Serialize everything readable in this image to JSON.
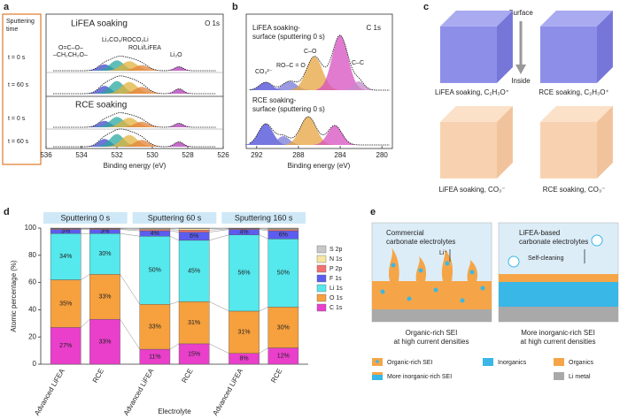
{
  "panels": {
    "a": {
      "letter": "a",
      "sputtering_time": [
        "Sputtering",
        "time"
      ],
      "rows": [
        "t = 0 s",
        "t = 60 s",
        "t = 0 s",
        "t = 60 s"
      ],
      "titles": [
        "LiFEA soaking",
        "RCE soaking"
      ],
      "region": "O 1s",
      "peaks": [
        "–CH₂CH₂O–",
        "O=C–O–",
        "Li₂CO₃/ROCO₂Li",
        "ROLi/LiFEA",
        "Li₂O"
      ],
      "xlabel": "Binding energy (eV)",
      "xlim": [
        536,
        526
      ],
      "xticks": [
        536,
        534,
        532,
        530,
        528,
        526
      ]
    },
    "b": {
      "letter": "b",
      "top": [
        "LiFEA soaking-",
        "surface (sputtering 0 s)"
      ],
      "region": "C 1s",
      "peaks": [
        "CO₃²⁻",
        "RO–C = O",
        "C–O",
        "C–C"
      ],
      "bottom": [
        "RCE soaking-",
        "surface (sputtering 0 s)"
      ],
      "xlabel": "Binding energy (eV)",
      "xlim": [
        293,
        279
      ],
      "xticks": [
        292,
        288,
        284,
        280
      ]
    },
    "c": {
      "letter": "c",
      "surface": "Surface",
      "inside": "Inside",
      "labels": [
        "LiFEA soaking, C₂H₃O⁺",
        "RCE soaking, C₂H₃O⁺",
        "LiFEA soaking, CO₃⁻",
        "RCE soaking, CO₃⁻"
      ]
    },
    "d": {
      "letter": "d"
    },
    "e": {
      "letter": "e",
      "left": {
        "title": [
          "Commercial",
          "carbonate electrolytes"
        ],
        "ion": "Li⁺",
        "caption": [
          "Organic-rich SEI",
          "at high current densities"
        ]
      },
      "right": {
        "title": [
          "LiFEA-based",
          "carbonate electrolytes"
        ],
        "note": "Self-cleaning",
        "caption": [
          "More inorganic-rich SEI",
          "at high current densities"
        ]
      },
      "legend": [
        "Organic-rich SEI",
        "Inorganics",
        "Organics",
        "More inorganic-rich SEI",
        "Li metal"
      ]
    }
  },
  "chart_data": {
    "type": "bar",
    "stacked": true,
    "groups": [
      "Sputtering 0 s",
      "Sputtering 60 s",
      "Sputtering 160 s"
    ],
    "categories": [
      "Advanced LiFEA",
      "RCE",
      "Advanced LiFEA",
      "RCE",
      "Advanced LiFEA",
      "RCE"
    ],
    "ylabel": "Atomic percentage (%)",
    "xlabel": "Electrolyte",
    "ylim": [
      0,
      100
    ],
    "yticks": [
      0,
      20,
      40,
      60,
      80,
      100
    ],
    "series": [
      {
        "name": "C 1s",
        "color": "#e93fcb",
        "values": [
          27,
          33,
          11,
          15,
          8,
          12
        ],
        "value_labels": [
          "27%",
          "33%",
          "11%",
          "15%",
          "8%",
          "12%"
        ]
      },
      {
        "name": "O 1s",
        "color": "#f6a03e",
        "values": [
          35,
          33,
          33,
          31,
          31,
          30
        ],
        "value_labels": [
          "35%",
          "33%",
          "33%",
          "31%",
          "31%",
          "30%"
        ]
      },
      {
        "name": "Li 1s",
        "color": "#55e8ec",
        "values": [
          34,
          30,
          50,
          45,
          56,
          50
        ],
        "value_labels": [
          "34%",
          "30%",
          "50%",
          "45%",
          "56%",
          "50%"
        ]
      },
      {
        "name": "F 1s",
        "color": "#5c5cf0",
        "values": [
          3,
          3,
          4,
          6,
          4,
          6
        ],
        "value_labels": [
          "3%",
          "3%",
          "4%",
          "6%",
          "4%",
          "6%"
        ]
      },
      {
        "name": "P 2p",
        "color": "#f47070",
        "values": [
          0.5,
          0.5,
          1,
          1.5,
          0.5,
          1
        ]
      },
      {
        "name": "N 1s",
        "color": "#f6e8a2",
        "values": [
          0.3,
          0.3,
          0.5,
          1,
          0.3,
          0.5
        ]
      },
      {
        "name": "S 2p",
        "color": "#c8c8c8",
        "values": [
          0.2,
          0.2,
          0.5,
          0.5,
          0.2,
          0.5
        ]
      }
    ]
  }
}
